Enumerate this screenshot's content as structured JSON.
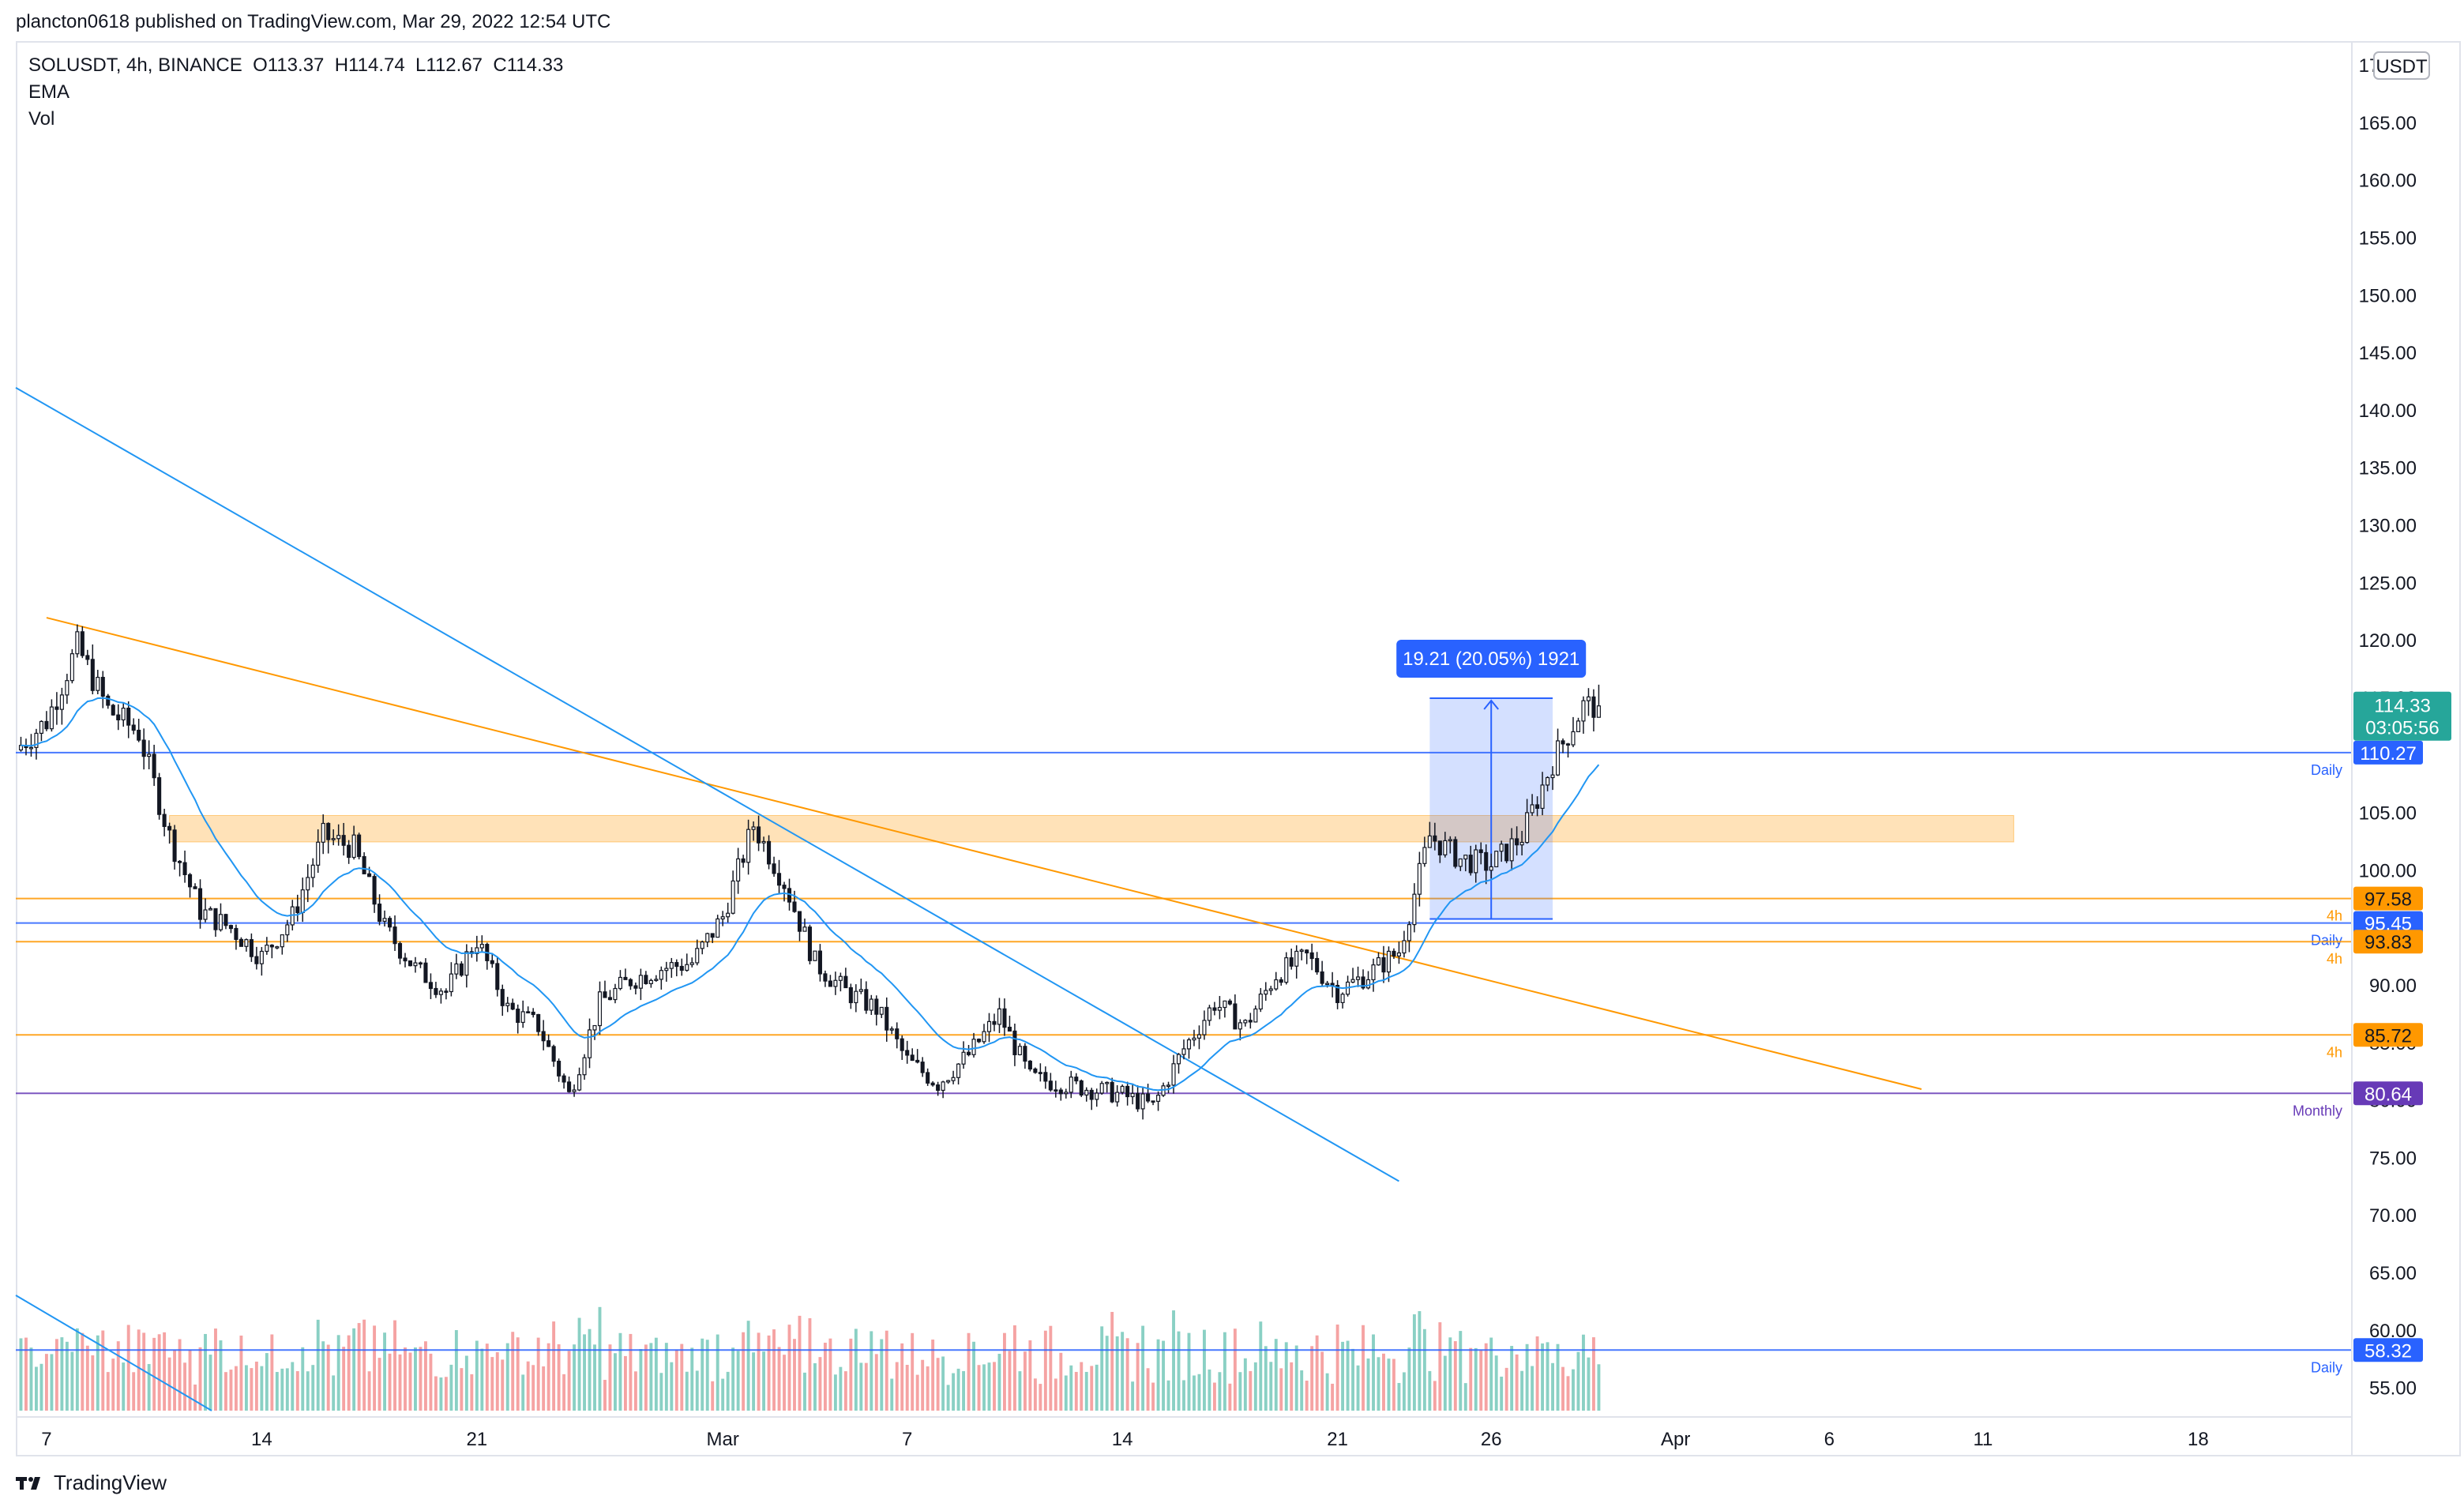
{
  "header": {
    "published_text": "plancton0618 published on TradingView.com, Mar 29, 2022 12:54 UTC"
  },
  "legend": {
    "symbol_line": "SOLUSDT, 4h, BINANCE",
    "open": "O113.37",
    "high": "H114.74",
    "low": "L112.67",
    "close": "C114.33",
    "indicator_1": "EMA",
    "indicator_2": "Vol"
  },
  "footer": {
    "brand": "TradingView"
  },
  "colors": {
    "up": "#26a69a",
    "down": "#ef5350",
    "vol_up": "#8ad0c4",
    "vol_down": "#f5a3a3",
    "ema": "#2196f3",
    "orange": "#ff9800",
    "blue_level": "#2962ff",
    "monthly": "#673ab7",
    "measure": "#2962ff"
  },
  "chart_data": {
    "type": "candlestick",
    "symbol": "SOLUSDT",
    "interval": "4h",
    "exchange": "BINANCE",
    "currency_badge": "USDT",
    "y_ticks": [
      "170.00",
      "165.00",
      "160.00",
      "155.00",
      "150.00",
      "145.00",
      "140.00",
      "135.00",
      "130.00",
      "125.00",
      "120.00",
      "115.00",
      "110.00",
      "105.00",
      "100.00",
      "95.00",
      "90.00",
      "85.00",
      "80.00",
      "75.00",
      "70.00",
      "65.00",
      "60.00",
      "55.00"
    ],
    "ylim": [
      52.5,
      172
    ],
    "x_ticks": [
      {
        "label": "7",
        "date": "2022-02-07"
      },
      {
        "label": "14",
        "date": "2022-02-14"
      },
      {
        "label": "21",
        "date": "2022-02-21"
      },
      {
        "label": "Mar",
        "date": "2022-03-01"
      },
      {
        "label": "7",
        "date": "2022-03-07"
      },
      {
        "label": "14",
        "date": "2022-03-14"
      },
      {
        "label": "21",
        "date": "2022-03-21"
      },
      {
        "label": "26",
        "date": "2022-03-26"
      },
      {
        "label": "Apr",
        "date": "2022-04-01"
      },
      {
        "label": "6",
        "date": "2022-04-06"
      },
      {
        "label": "11",
        "date": "2022-04-11"
      },
      {
        "label": "18",
        "date": "2022-04-18"
      }
    ],
    "x_range": [
      "2022-02-06",
      "2022-04-23"
    ],
    "price_path": [
      {
        "date": "2022-02-06",
        "close": 110.5
      },
      {
        "date": "2022-02-07",
        "close": 113.0
      },
      {
        "date": "2022-02-08",
        "close": 119.5
      },
      {
        "date": "2022-02-09",
        "close": 114.0
      },
      {
        "date": "2022-02-10",
        "close": 112.0
      },
      {
        "date": "2022-02-11",
        "close": 103.0
      },
      {
        "date": "2022-02-12",
        "close": 96.5
      },
      {
        "date": "2022-02-13",
        "close": 95.0
      },
      {
        "date": "2022-02-14",
        "close": 92.5
      },
      {
        "date": "2022-02-15",
        "close": 96.0
      },
      {
        "date": "2022-02-16",
        "close": 103.0
      },
      {
        "date": "2022-02-17",
        "close": 102.0
      },
      {
        "date": "2022-02-18",
        "close": 95.0
      },
      {
        "date": "2022-02-19",
        "close": 91.5
      },
      {
        "date": "2022-02-20",
        "close": 89.5
      },
      {
        "date": "2022-02-21",
        "close": 94.0
      },
      {
        "date": "2022-02-22",
        "close": 88.0
      },
      {
        "date": "2022-02-23",
        "close": 86.5
      },
      {
        "date": "2022-02-24",
        "close": 80.5
      },
      {
        "date": "2022-02-25",
        "close": 88.5
      },
      {
        "date": "2022-02-26",
        "close": 90.5
      },
      {
        "date": "2022-02-27",
        "close": 91.5
      },
      {
        "date": "2022-02-28",
        "close": 92.0
      },
      {
        "date": "2022-03-01",
        "close": 96.0
      },
      {
        "date": "2022-03-02",
        "close": 104.0
      },
      {
        "date": "2022-03-03",
        "close": 99.0
      },
      {
        "date": "2022-03-04",
        "close": 92.0
      },
      {
        "date": "2022-03-05",
        "close": 89.5
      },
      {
        "date": "2022-03-06",
        "close": 88.0
      },
      {
        "date": "2022-03-07",
        "close": 83.5
      },
      {
        "date": "2022-03-08",
        "close": 81.5
      },
      {
        "date": "2022-03-09",
        "close": 84.0
      },
      {
        "date": "2022-03-10",
        "close": 87.5
      },
      {
        "date": "2022-03-11",
        "close": 82.0
      },
      {
        "date": "2022-03-12",
        "close": 81.5
      },
      {
        "date": "2022-03-13",
        "close": 81.0
      },
      {
        "date": "2022-03-14",
        "close": 80.5
      },
      {
        "date": "2022-03-15",
        "close": 79.5
      },
      {
        "date": "2022-03-16",
        "close": 84.5
      },
      {
        "date": "2022-03-17",
        "close": 88.5
      },
      {
        "date": "2022-03-18",
        "close": 86.5
      },
      {
        "date": "2022-03-19",
        "close": 91.0
      },
      {
        "date": "2022-03-20",
        "close": 92.5
      },
      {
        "date": "2022-03-21",
        "close": 89.5
      },
      {
        "date": "2022-03-22",
        "close": 91.0
      },
      {
        "date": "2022-03-23",
        "close": 93.0
      },
      {
        "date": "2022-03-24",
        "close": 103.0
      },
      {
        "date": "2022-03-25",
        "close": 101.0
      },
      {
        "date": "2022-03-26",
        "close": 100.5
      },
      {
        "date": "2022-03-27",
        "close": 103.0
      },
      {
        "date": "2022-03-28",
        "close": 109.5
      },
      {
        "date": "2022-03-29",
        "close": 114.33
      }
    ],
    "ema_label": "EMA",
    "volume_label": "Vol",
    "horizontal_levels": [
      {
        "price": 110.27,
        "label": "110.27",
        "note": "Daily",
        "color": "#2962ff"
      },
      {
        "price": 97.58,
        "label": "97.58",
        "note": "4h",
        "color": "#ff9800"
      },
      {
        "price": 95.45,
        "label": "95.45",
        "note": "Daily",
        "color": "#2962ff"
      },
      {
        "price": 93.83,
        "label": "93.83",
        "note": "4h",
        "color": "#ff9800"
      },
      {
        "price": 85.72,
        "label": "85.72",
        "note": "4h",
        "color": "#ff9800"
      },
      {
        "price": 80.64,
        "label": "80.64",
        "note": "Monthly",
        "color": "#673ab7"
      },
      {
        "price": 58.32,
        "label": "58.32",
        "note": "Daily",
        "color": "#2962ff"
      }
    ],
    "last_price": {
      "label": "114.33",
      "countdown": "03:05:56",
      "price": 114.33
    },
    "resistance_zone": {
      "from_date": "2022-02-11",
      "to_date": "2022-04-12",
      "low": 102.5,
      "high": 104.8
    },
    "trendlines": [
      {
        "color": "#ff9800",
        "from": {
          "date": "2022-02-07",
          "price": 122.0
        },
        "to": {
          "date": "2022-04-09",
          "price": 81.0
        }
      },
      {
        "color": "#2196f3",
        "from": {
          "date": "2022-02-06",
          "price": 142.0
        },
        "to": {
          "date": "2022-03-23",
          "price": 73.0
        }
      }
    ],
    "measure": {
      "label": "19.21 (20.05%) 1921",
      "from_date": "2022-03-24",
      "to_date": "2022-03-28",
      "low": 95.8,
      "high": 115.0
    }
  }
}
